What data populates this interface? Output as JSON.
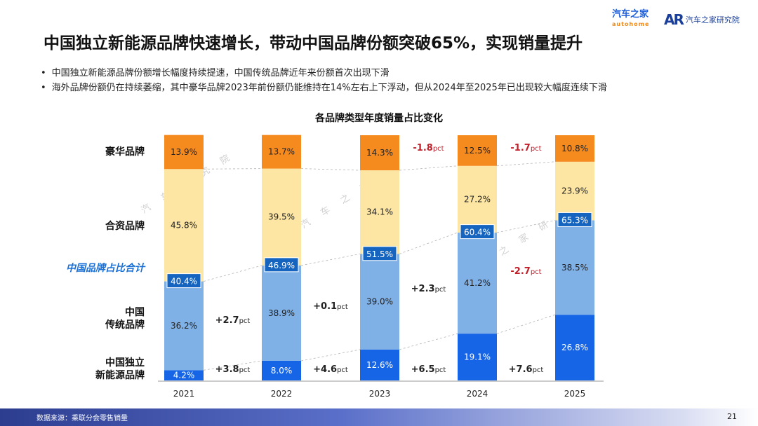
{
  "header": {
    "logo_left": "汽车之家",
    "logo_left_sub": "autohome",
    "logo_right_mark": "AR",
    "logo_right_name": "汽车之家研究院"
  },
  "title": "中国独立新能源品牌快速增长，带动中国品牌份额突破65%，实现销量提升",
  "bullets": [
    "中国独立新能源品牌份额增长幅度持续提速，中国传统品牌近年来份额首次出现下滑",
    "海外品牌份额仍在持续萎缩，其中豪华品牌2023年前份额仍能维持在14%左右上下浮动，但从2024年至2025年已出现较大幅度连续下滑"
  ],
  "watermark": [
    "汽 车 研 究 院",
    "汽 车 之 家",
    "之 家 研 究 院"
  ],
  "row_labels": {
    "luxury": "豪华品牌",
    "jv": "合资品牌",
    "china_total": "中国品牌占比合计",
    "traditional_1": "中国",
    "traditional_2": "传统品牌",
    "nev_1": "中国独立",
    "nev_2": "新能源品牌"
  },
  "chart_data": {
    "type": "bar",
    "stacked": true,
    "title": "各品牌类型年度销量占比变化",
    "categories": [
      "2021",
      "2022",
      "2023",
      "2024",
      "2025"
    ],
    "series": [
      {
        "name": "中国独立新能源品牌",
        "values": [
          4.2,
          8.0,
          12.6,
          19.1,
          26.8
        ],
        "color": "#1565e6"
      },
      {
        "name": "中国传统品牌",
        "values": [
          36.2,
          38.9,
          39.0,
          41.2,
          38.5
        ],
        "color": "#7fb0e6"
      },
      {
        "name": "合资品牌",
        "values": [
          45.8,
          39.5,
          34.1,
          27.2,
          23.9
        ],
        "color": "#fde6a3"
      },
      {
        "name": "豪华品牌",
        "values": [
          13.9,
          13.7,
          14.3,
          12.5,
          10.8
        ],
        "color": "#f58a1f"
      }
    ],
    "china_total": [
      40.4,
      46.9,
      51.5,
      60.4,
      65.3
    ],
    "labels": {
      "nev": [
        "4.2%",
        "8.0%",
        "12.6%",
        "19.1%",
        "26.8%"
      ],
      "traditional": [
        "36.2%",
        "38.9%",
        "39.0%",
        "41.2%",
        "38.5%"
      ],
      "jv": [
        "45.8%",
        "39.5%",
        "34.1%",
        "27.2%",
        "23.9%"
      ],
      "luxury": [
        "13.9%",
        "13.7%",
        "14.3%",
        "12.5%",
        "10.8%"
      ],
      "china_total": [
        "40.4%",
        "46.9%",
        "51.5%",
        "60.4%",
        "65.3%"
      ]
    },
    "changes": {
      "nev": [
        "+3.8",
        "+4.6",
        "+6.5",
        "+7.6"
      ],
      "traditional": [
        "+2.7",
        "+0.1",
        "+2.3",
        "-2.7"
      ],
      "luxury": [
        "",
        "",
        "-1.8",
        "-1.7"
      ]
    },
    "change_unit": "pct",
    "ylim": [
      0,
      100
    ]
  },
  "colors": {
    "nev": "#1565e6",
    "traditional": "#7fb0e6",
    "jv": "#fde6a3",
    "luxury": "#f58a1f",
    "china_total_box": "#1565c0",
    "negative": "#c0202a"
  },
  "footer": {
    "source": "数据来源：乘联分会零售销量",
    "page": "21"
  }
}
